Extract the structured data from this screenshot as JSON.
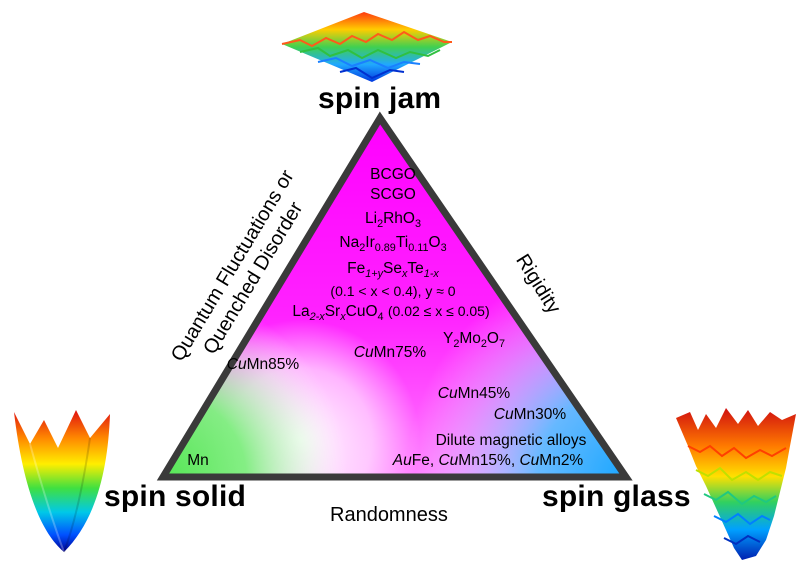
{
  "corners": {
    "top": "spin jam",
    "left": "spin solid",
    "right": "spin glass"
  },
  "sides": {
    "left_line1": "Quantum Fluctuations or",
    "left_line2": "Quenched Disorder",
    "right": "Rigidity",
    "bottom": "Randomness"
  },
  "materials": {
    "bcgo": "BCGO",
    "scgo": "SCGO",
    "li2rho3": {
      "a": "Li",
      "a_sub": "2",
      "b": "RhO",
      "b_sub": "3"
    },
    "na2ir": {
      "a": "Na",
      "a_sub": "2",
      "b": "Ir",
      "b_sub": "0.89",
      "c": "Ti",
      "c_sub": "0.11",
      "d": "O",
      "d_sub": "3"
    },
    "fese": {
      "a": "Fe",
      "a_sub": "1+y",
      "b": "Se",
      "b_sub": "x",
      "c": "Te",
      "c_sub": "1-x"
    },
    "fese_cond": "(0.1 < x < 0.4), y ≈ 0",
    "lsco": {
      "a": "La",
      "a_sub": "2-x",
      "b": "Sr",
      "b_sub": "x",
      "c": "CuO",
      "c_sub": "4"
    },
    "lsco_cond": "(0.02 ≤ x ≤ 0.05)",
    "ymo": {
      "a": "Y",
      "a_sub": "2",
      "b": "Mo",
      "b_sub": "2",
      "c": "O",
      "c_sub": "7"
    },
    "cumn85": {
      "cu": "Cu",
      "rest": "Mn85%"
    },
    "cumn75": {
      "cu": "Cu",
      "rest": "Mn75%"
    },
    "cumn45": {
      "cu": "Cu",
      "rest": "Mn45%"
    },
    "cumn30": {
      "cu": "Cu",
      "rest": "Mn30%"
    },
    "dilute": "Dilute magnetic alloys",
    "alloys": {
      "au": "Au",
      "fe": "Fe, ",
      "cu1": "Cu",
      "mn15": "Mn15%, ",
      "cu2": "Cu",
      "mn2": "Mn2%"
    },
    "mn": "Mn"
  },
  "colors": {
    "magenta": "#ff00ff",
    "green": "#66ee66",
    "blue": "#2ea8ff",
    "border": "#3a3a3a"
  },
  "icons": [
    "surface-plot-flat-icon",
    "surface-plot-bowl-icon",
    "surface-plot-rugged-icon"
  ]
}
